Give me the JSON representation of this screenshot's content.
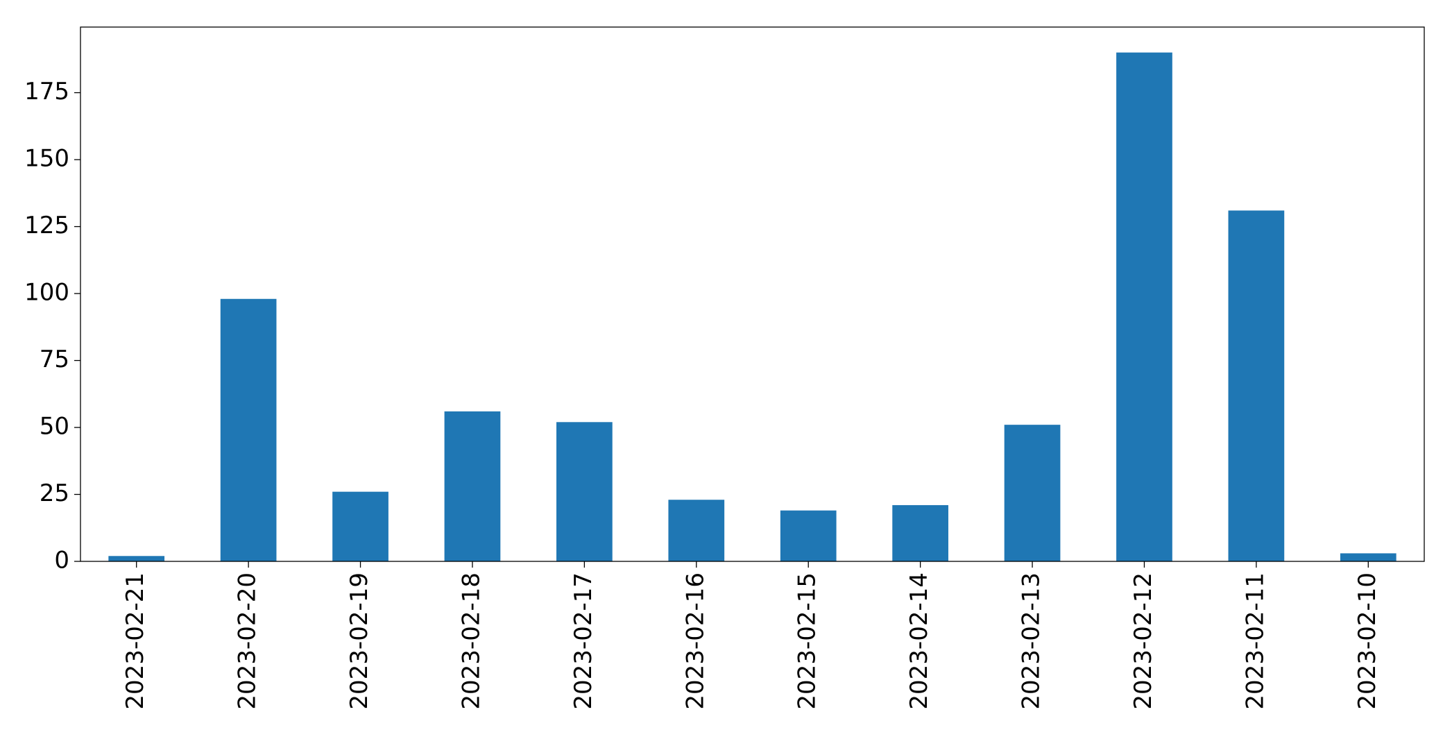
{
  "chart_data": {
    "type": "bar",
    "categories": [
      "2023-02-21",
      "2023-02-20",
      "2023-02-19",
      "2023-02-18",
      "2023-02-17",
      "2023-02-16",
      "2023-02-15",
      "2023-02-14",
      "2023-02-13",
      "2023-02-12",
      "2023-02-11",
      "2023-02-10"
    ],
    "values": [
      2,
      98,
      26,
      56,
      52,
      23,
      19,
      21,
      51,
      190,
      131,
      3
    ],
    "color": "#1f77b4",
    "ylim": [
      0,
      199.5
    ],
    "yticks": [
      0,
      25,
      50,
      75,
      100,
      125,
      150,
      175
    ],
    "grid": false
  }
}
